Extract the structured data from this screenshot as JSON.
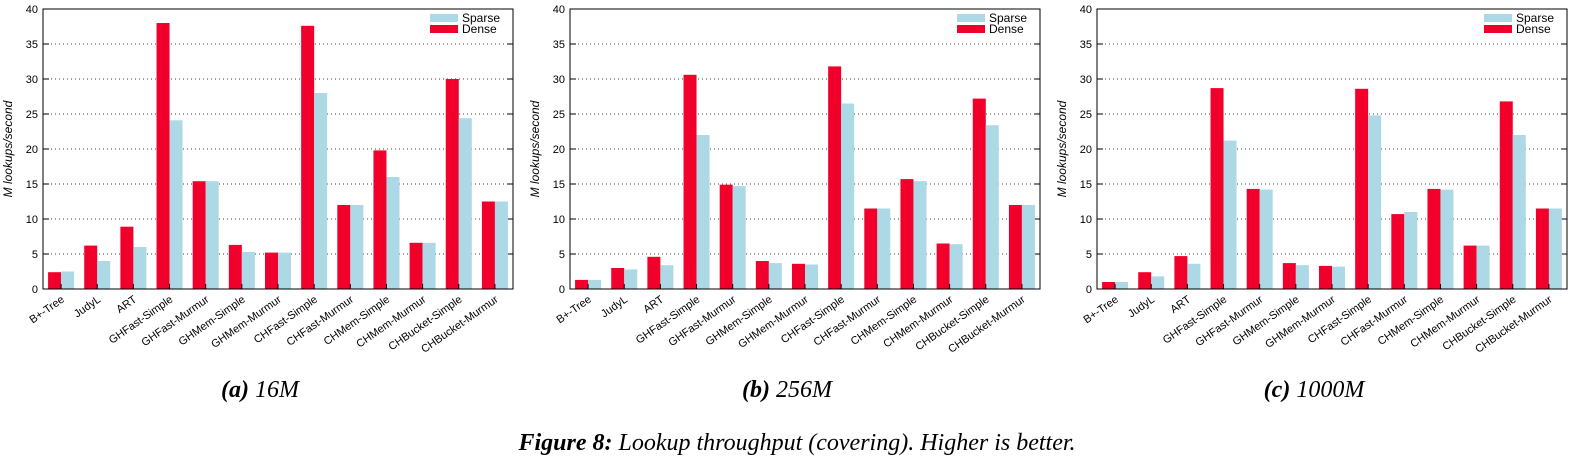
{
  "colors": {
    "sparse": "#add8e6",
    "dense": "#f0002a"
  },
  "caption": {
    "label": "Figure 8:",
    "text": " Lookup throughput (covering). Higher is better."
  },
  "chart_data": [
    {
      "type": "bar",
      "panel_label": "(a)",
      "panel_title": " 16M",
      "ylabel": "M lookups/second",
      "ylim": [
        0,
        40
      ],
      "yticks": [
        0,
        5,
        10,
        15,
        20,
        25,
        30,
        35,
        40
      ],
      "legend_position": "top-right",
      "grid": "horizontal-dotted",
      "categories": [
        "B+-Tree",
        "JudyL",
        "ART",
        "GHFast-Simple",
        "GHFast-Murmur",
        "GHMem-Simple",
        "GHMem-Murmur",
        "CHFast-Simple",
        "CHFast-Murmur",
        "CHMem-Simple",
        "CHMem-Murmur",
        "CHBucket-Simple",
        "CHBucket-Murmur"
      ],
      "series": [
        {
          "name": "Sparse",
          "values": [
            2.5,
            4.0,
            6.0,
            24.1,
            15.4,
            5.3,
            5.2,
            28.0,
            12.0,
            16.0,
            6.6,
            24.4,
            12.5
          ]
        },
        {
          "name": "Dense",
          "values": [
            2.4,
            6.2,
            8.9,
            38.0,
            15.4,
            6.3,
            5.2,
            37.6,
            12.0,
            19.8,
            6.6,
            30.0,
            12.5
          ]
        }
      ]
    },
    {
      "type": "bar",
      "panel_label": "(b)",
      "panel_title": " 256M",
      "ylabel": "M lookups/second",
      "ylim": [
        0,
        40
      ],
      "yticks": [
        0,
        5,
        10,
        15,
        20,
        25,
        30,
        35,
        40
      ],
      "legend_position": "top-right",
      "grid": "horizontal-dotted",
      "categories": [
        "B+-Tree",
        "JudyL",
        "ART",
        "GHFast-Simple",
        "GHFast-Murmur",
        "GHMem-Simple",
        "GHMem-Murmur",
        "CHFast-Simple",
        "CHFast-Murmur",
        "CHMem-Simple",
        "CHMem-Murmur",
        "CHBucket-Simple",
        "CHBucket-Murmur"
      ],
      "series": [
        {
          "name": "Sparse",
          "values": [
            1.3,
            2.8,
            3.4,
            22.0,
            14.7,
            3.7,
            3.5,
            26.5,
            11.5,
            15.4,
            6.4,
            23.4,
            12.0
          ]
        },
        {
          "name": "Dense",
          "values": [
            1.3,
            3.0,
            4.6,
            30.6,
            14.9,
            4.0,
            3.6,
            31.8,
            11.5,
            15.7,
            6.5,
            27.2,
            12.0
          ]
        }
      ]
    },
    {
      "type": "bar",
      "panel_label": "(c)",
      "panel_title": " 1000M",
      "ylabel": "M lookups/second",
      "ylim": [
        0,
        40
      ],
      "yticks": [
        0,
        5,
        10,
        15,
        20,
        25,
        30,
        35,
        40
      ],
      "legend_position": "top-right",
      "grid": "horizontal-dotted",
      "categories": [
        "B+-Tree",
        "JudyL",
        "ART",
        "GHFast-Simple",
        "GHFast-Murmur",
        "GHMem-Simple",
        "GHMem-Murmur",
        "CHFast-Simple",
        "CHFast-Murmur",
        "CHMem-Simple",
        "CHMem-Murmur",
        "CHBucket-Simple",
        "CHBucket-Murmur"
      ],
      "series": [
        {
          "name": "Sparse",
          "values": [
            1.0,
            1.8,
            3.6,
            21.2,
            14.2,
            3.4,
            3.2,
            24.8,
            11.0,
            14.2,
            6.2,
            22.0,
            11.5
          ]
        },
        {
          "name": "Dense",
          "values": [
            1.0,
            2.4,
            4.7,
            28.7,
            14.3,
            3.7,
            3.3,
            28.6,
            10.7,
            14.3,
            6.2,
            26.8,
            11.5
          ]
        }
      ]
    }
  ]
}
